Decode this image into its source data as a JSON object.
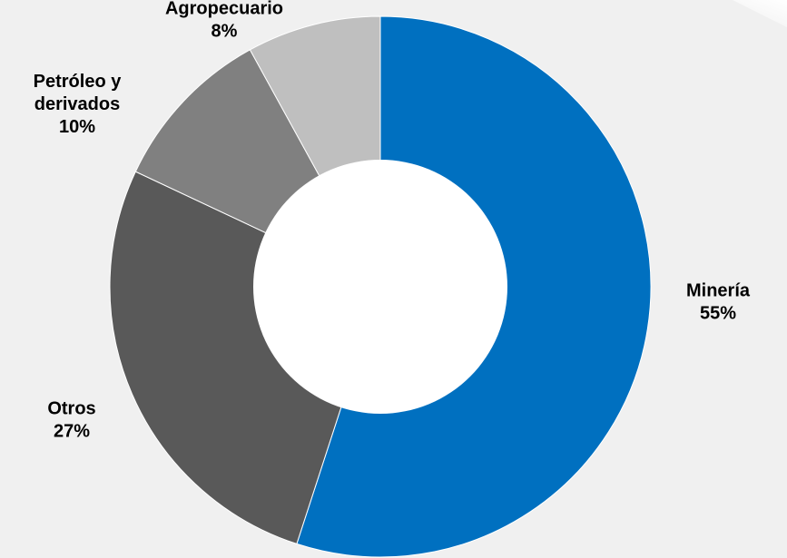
{
  "chart_data": {
    "type": "pie",
    "variant": "donut",
    "title": "",
    "start_angle_deg": 0,
    "direction": "clockwise",
    "slices": [
      {
        "name": "Minería",
        "label_lines": [
          "Minería"
        ],
        "value": 55,
        "value_label": "55%",
        "color": "#0070c0"
      },
      {
        "name": "Otros",
        "label_lines": [
          "Otros"
        ],
        "value": 27,
        "value_label": "27%",
        "color": "#595959"
      },
      {
        "name": "Petróleo y derivados",
        "label_lines": [
          "Petróleo y",
          "derivados"
        ],
        "value": 10,
        "value_label": "10%",
        "color": "#808080"
      },
      {
        "name": "Agropecuario",
        "label_lines": [
          "Agropecuario"
        ],
        "value": 8,
        "value_label": "8%",
        "color": "#bfbfbf"
      }
    ],
    "legend": "none"
  },
  "colors": {
    "background": "#f0f0f0",
    "hole": "#ffffff",
    "separator": "#ffffff"
  }
}
